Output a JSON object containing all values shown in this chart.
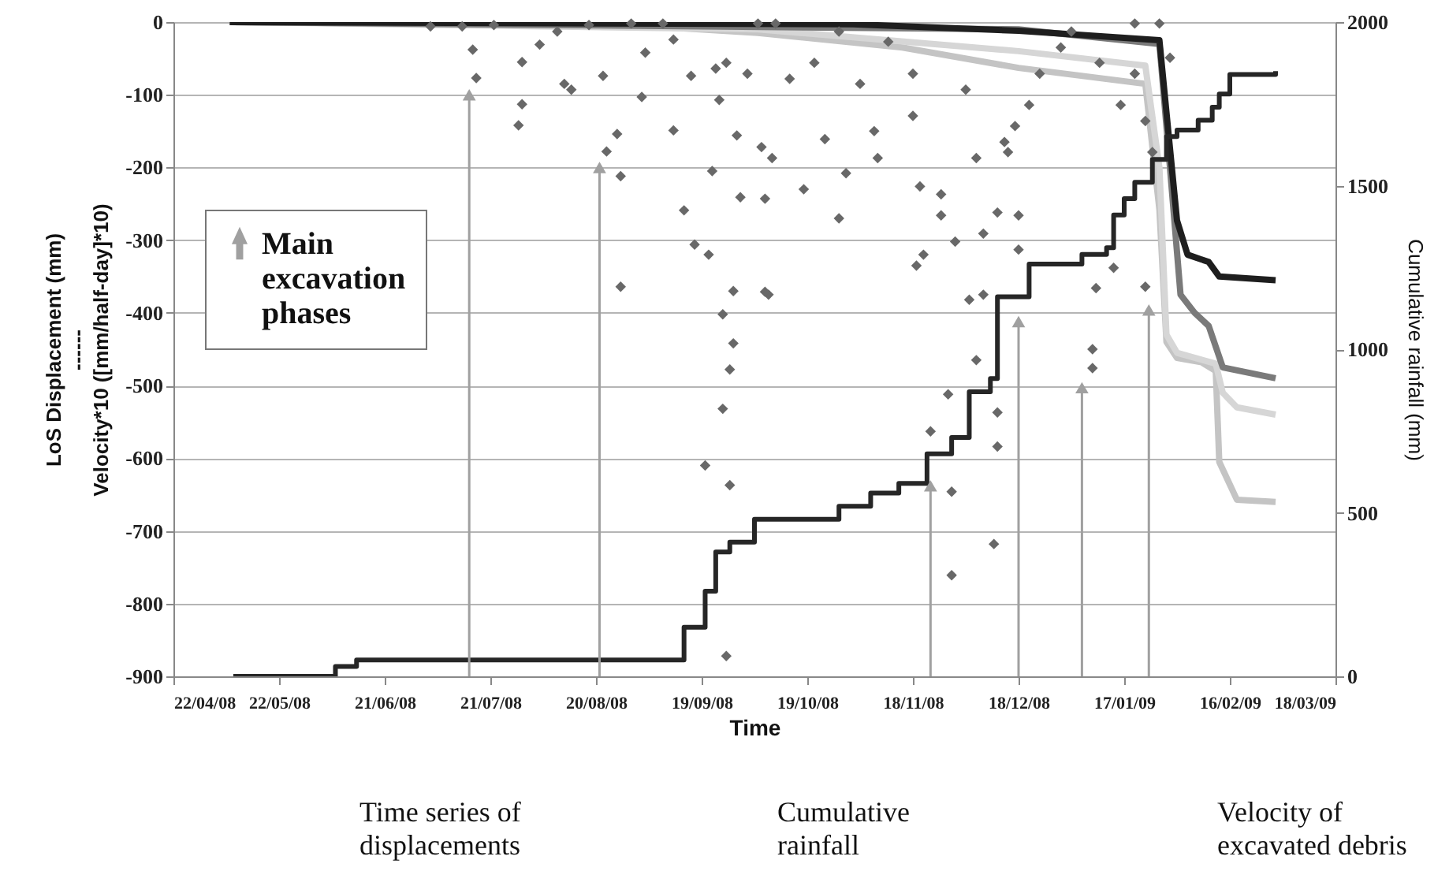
{
  "chart_data": {
    "type": "line",
    "xlabel": "Time",
    "ylabel": "LoS Displacement (mm)\n------\nVelocity*10 ([mm/half-day]*10)",
    "y2label": "Cumulative rainfall (mm)",
    "xlim": [
      "2008-04-22",
      "2009-03-18"
    ],
    "xticks": [
      {
        "value": "2008-04-22",
        "label": "22/04/08"
      },
      {
        "value": "2008-05-22",
        "label": "22/05/08"
      },
      {
        "value": "2008-06-21",
        "label": "21/06/08"
      },
      {
        "value": "2008-07-21",
        "label": "21/07/08"
      },
      {
        "value": "2008-08-20",
        "label": "20/08/08"
      },
      {
        "value": "2008-09-19",
        "label": "19/09/08"
      },
      {
        "value": "2008-10-19",
        "label": "19/10/08"
      },
      {
        "value": "2008-11-18",
        "label": "18/11/08"
      },
      {
        "value": "2008-12-18",
        "label": "18/12/08"
      },
      {
        "value": "2009-01-17",
        "label": "17/01/09"
      },
      {
        "value": "2009-02-16",
        "label": "16/02/09"
      },
      {
        "value": "2009-03-18",
        "label": "18/03/09"
      }
    ],
    "ylim": [
      -900,
      0
    ],
    "yticks": [
      -900,
      -800,
      -700,
      -600,
      -500,
      -400,
      -300,
      -200,
      -100,
      0
    ],
    "y2lim": [
      0,
      2000
    ],
    "y2ticks": [
      0,
      500,
      1000,
      1500,
      2000
    ],
    "grid": "y",
    "legend": "left",
    "annotations": [
      "Time series of\ndisplacements",
      "Cumulative\nrainfall",
      "Velocity of\nexcavated debris"
    ],
    "series": [
      {
        "color": "#c4c4c4",
        "x": [
          "2008-05-08",
          "2008-09-01",
          "2008-10-05",
          "2008-11-15",
          "2008-12-18",
          "2009-01-23",
          "2009-01-27",
          "2009-01-29",
          "2009-02-01",
          "2009-02-08",
          "2009-02-12",
          "2009-02-13",
          "2009-02-18",
          "2009-03-01"
        ],
        "values": [
          0,
          -5,
          -15,
          -35,
          -63,
          -85,
          -258,
          -440,
          -462,
          -468,
          -480,
          -605,
          -657,
          -660
        ]
      },
      {
        "color": "#d6d6d6",
        "x": [
          "2008-05-08",
          "2008-10-05",
          "2008-12-18",
          "2009-01-23",
          "2009-01-27",
          "2009-01-29",
          "2009-02-01",
          "2009-02-12",
          "2009-02-14",
          "2009-02-18",
          "2009-03-01"
        ],
        "values": [
          0,
          -10,
          -40,
          -60,
          -200,
          -430,
          -455,
          -470,
          -510,
          -530,
          -540
        ]
      },
      {
        "color": "#7a7a7a",
        "x": [
          "2008-05-08",
          "2008-12-18",
          "2009-01-27",
          "2009-01-30",
          "2009-02-02",
          "2009-02-06",
          "2009-02-10",
          "2009-02-14",
          "2009-03-01"
        ],
        "values": [
          0,
          -10,
          -30,
          -200,
          -375,
          -400,
          -418,
          -475,
          -490
        ]
      },
      {
        "color": "#1e1e1e",
        "x": [
          "2008-05-08",
          "2008-11-01",
          "2008-12-18",
          "2009-01-27",
          "2009-02-01",
          "2009-02-04",
          "2009-02-10",
          "2009-02-13",
          "2009-03-01"
        ],
        "values": [
          0,
          -3,
          -12,
          -25,
          -273,
          -320,
          -330,
          -350,
          -355
        ]
      },
      {
        "type": "scatter",
        "marker": "diamond",
        "color": "#686868",
        "x": [
          "2008-07-16",
          "2008-07-17",
          "2008-07-30",
          "2008-07-30",
          "2008-07-29",
          "2008-08-04",
          "2008-08-11",
          "2008-08-13",
          "2008-08-22",
          "2008-08-23",
          "2008-08-26",
          "2008-08-27",
          "2008-08-27",
          "2008-09-02",
          "2008-09-03",
          "2008-09-11",
          "2008-09-14",
          "2008-09-17",
          "2008-09-21",
          "2008-09-20",
          "2008-09-22",
          "2008-09-25",
          "2008-09-28",
          "2008-09-27",
          "2008-09-25",
          "2008-09-27",
          "2008-09-26",
          "2008-09-28",
          "2008-09-29",
          "2008-09-30",
          "2008-10-02",
          "2008-10-07",
          "2008-10-08",
          "2008-10-05",
          "2008-08-30",
          "2008-07-13",
          "2008-07-04",
          "2008-07-22",
          "2008-08-09",
          "2008-08-18",
          "2008-09-08",
          "2008-09-11",
          "2008-09-16",
          "2008-09-23",
          "2008-09-24",
          "2008-09-26",
          "2008-10-07",
          "2008-10-18",
          "2008-10-28",
          "2008-11-07",
          "2008-10-30",
          "2008-10-24",
          "2008-11-19",
          "2008-11-21",
          "2008-11-23",
          "2008-11-29",
          "2008-11-29",
          "2008-11-28",
          "2008-12-11",
          "2008-12-12",
          "2008-12-12",
          "2008-12-06",
          "2008-12-04",
          "2008-12-08",
          "2009-01-08",
          "2009-01-08",
          "2009-01-09",
          "2009-01-23",
          "2009-01-14",
          "2008-12-18",
          "2008-12-18",
          "2008-11-20",
          "2008-11-26",
          "2008-11-30",
          "2008-12-08",
          "2008-12-12",
          "2008-12-14",
          "2008-12-17",
          "2008-12-21",
          "2008-12-24",
          "2008-12-30",
          "2009-01-02",
          "2009-01-10",
          "2009-01-16",
          "2009-01-20",
          "2009-01-23",
          "2009-01-25",
          "2009-01-27",
          "2009-01-30",
          "2009-01-20",
          "2008-10-10",
          "2008-10-28",
          "2008-11-11",
          "2008-11-03",
          "2008-11-18",
          "2008-12-03",
          "2008-11-18",
          "2008-11-08",
          "2008-12-06",
          "2008-12-15",
          "2008-11-26",
          "2008-10-09",
          "2008-10-06",
          "2008-10-21",
          "2008-10-14"
        ],
        "values": [
          -38,
          -77,
          -55,
          -113,
          -142,
          -31,
          -85,
          -93,
          -74,
          -178,
          -154,
          -212,
          -364,
          -103,
          -42,
          -149,
          -259,
          -306,
          -320,
          -610,
          -205,
          -402,
          -442,
          -478,
          -532,
          -637,
          -872,
          -370,
          -156,
          -241,
          -71,
          -243,
          -375,
          -2,
          -2,
          -6,
          -6,
          -4,
          -13,
          -4,
          -2,
          -24,
          -74,
          -64,
          -107,
          -56,
          -371,
          -230,
          -270,
          -150,
          -208,
          -161,
          -335,
          -320,
          -563,
          -646,
          -761,
          -512,
          -718,
          -584,
          -537,
          -465,
          -382,
          -375,
          -450,
          -476,
          -366,
          -364,
          -338,
          -313,
          -266,
          -226,
          -266,
          -302,
          -291,
          -262,
          -165,
          -143,
          -114,
          -71,
          -35,
          -13,
          -56,
          -114,
          -71,
          -136,
          -179,
          -2,
          -49,
          -2,
          -2,
          -13,
          -27,
          -85,
          -71,
          -93,
          -129,
          -187,
          -187,
          -179,
          -237,
          -187,
          -172,
          -56,
          -78
        ]
      },
      {
        "type": "step",
        "axis": "y2",
        "color": "#262626",
        "x": [
          "2008-05-09",
          "2008-06-07",
          "2008-06-13",
          "2008-09-14",
          "2008-09-20",
          "2008-09-23",
          "2008-09-27",
          "2008-10-04",
          "2008-10-28",
          "2008-11-06",
          "2008-11-14",
          "2008-11-22",
          "2008-11-29",
          "2008-12-04",
          "2008-12-10",
          "2008-12-12",
          "2008-12-21",
          "2009-01-05",
          "2009-01-12",
          "2009-01-14",
          "2009-01-17",
          "2009-01-20",
          "2009-01-25",
          "2009-01-29",
          "2009-02-01",
          "2009-02-07",
          "2009-02-11",
          "2009-02-13",
          "2009-02-16",
          "2009-03-01"
        ],
        "values": [
          0,
          30,
          50,
          150,
          260,
          380,
          410,
          480,
          520,
          560,
          590,
          680,
          730,
          870,
          910,
          1160,
          1260,
          1290,
          1310,
          1410,
          1460,
          1510,
          1580,
          1650,
          1670,
          1700,
          1740,
          1780,
          1840,
          1850
        ]
      },
      {
        "type": "scatter",
        "name": "Main excavation phases",
        "marker": "triangle",
        "color": "#a0a0a0",
        "x": [
          "2008-07-15",
          "2008-08-21",
          "2008-11-23",
          "2008-12-18",
          "2009-01-05",
          "2009-01-24"
        ],
        "values": [
          -100,
          -200,
          -638,
          -412,
          -503,
          -396
        ],
        "errors": [
          [
            -900,
            -100
          ],
          [
            -900,
            -200
          ],
          [
            -900,
            -638
          ],
          [
            -900,
            -412
          ],
          [
            -900,
            -503
          ],
          [
            -900,
            -396
          ]
        ]
      }
    ]
  }
}
